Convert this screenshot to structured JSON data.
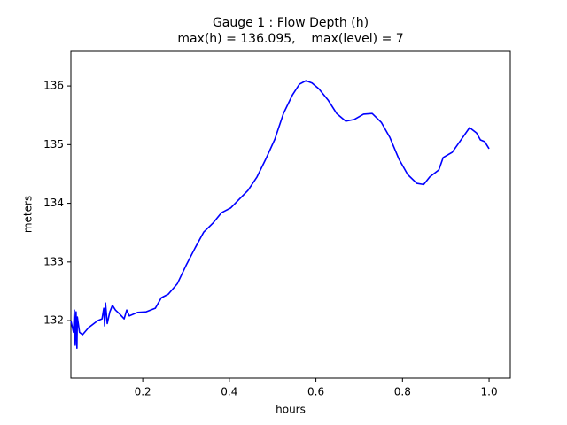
{
  "chart_data": {
    "type": "line",
    "title": "Gauge 1 : Flow Depth (h)",
    "subtitle": "max(h) = 136.095,    max(level) = 7",
    "x_label": "hours",
    "y_label": "meters",
    "xlim": [
      0.034,
      1.049
    ],
    "ylim": [
      131.02,
      136.59
    ],
    "xticks": [
      0.2,
      0.4,
      0.6,
      0.8,
      {
        "value": 1,
        "label": "1.0"
      }
    ],
    "yticks": [
      132,
      133,
      134,
      135,
      136
    ],
    "series": [
      {
        "color": "#0000ff",
        "x": [
          0.034,
          0.04,
          0.042,
          0.044,
          0.046,
          0.048,
          0.049,
          0.054,
          0.061,
          0.075,
          0.096,
          0.106,
          0.11,
          0.112,
          0.114,
          0.118,
          0.124,
          0.13,
          0.137,
          0.147,
          0.157,
          0.163,
          0.169,
          0.188,
          0.208,
          0.229,
          0.243,
          0.259,
          0.28,
          0.3,
          0.321,
          0.341,
          0.362,
          0.382,
          0.403,
          0.423,
          0.443,
          0.464,
          0.484,
          0.505,
          0.525,
          0.546,
          0.562,
          0.577,
          0.591,
          0.607,
          0.628,
          0.648,
          0.669,
          0.689,
          0.71,
          0.73,
          0.751,
          0.771,
          0.792,
          0.812,
          0.833,
          0.849,
          0.863,
          0.884,
          0.894,
          0.915,
          0.935,
          0.955,
          0.971,
          0.98,
          0.99,
          1.0
        ],
        "values": [
          132.0,
          131.8,
          132.18,
          131.58,
          132.15,
          131.53,
          132.06,
          131.8,
          131.76,
          131.88,
          132.0,
          132.03,
          132.21,
          131.91,
          132.3,
          131.95,
          132.15,
          132.26,
          132.18,
          132.11,
          132.03,
          132.18,
          132.08,
          132.14,
          132.15,
          132.21,
          132.39,
          132.45,
          132.63,
          132.94,
          133.24,
          133.51,
          133.66,
          133.84,
          133.92,
          134.07,
          134.22,
          134.45,
          134.75,
          135.09,
          135.53,
          135.85,
          136.03,
          136.09,
          136.05,
          135.95,
          135.76,
          135.53,
          135.4,
          135.43,
          135.52,
          135.53,
          135.38,
          135.12,
          134.75,
          134.49,
          134.34,
          134.32,
          134.45,
          134.57,
          134.78,
          134.87,
          135.08,
          135.29,
          135.2,
          135.08,
          135.05,
          134.93
        ]
      }
    ]
  }
}
